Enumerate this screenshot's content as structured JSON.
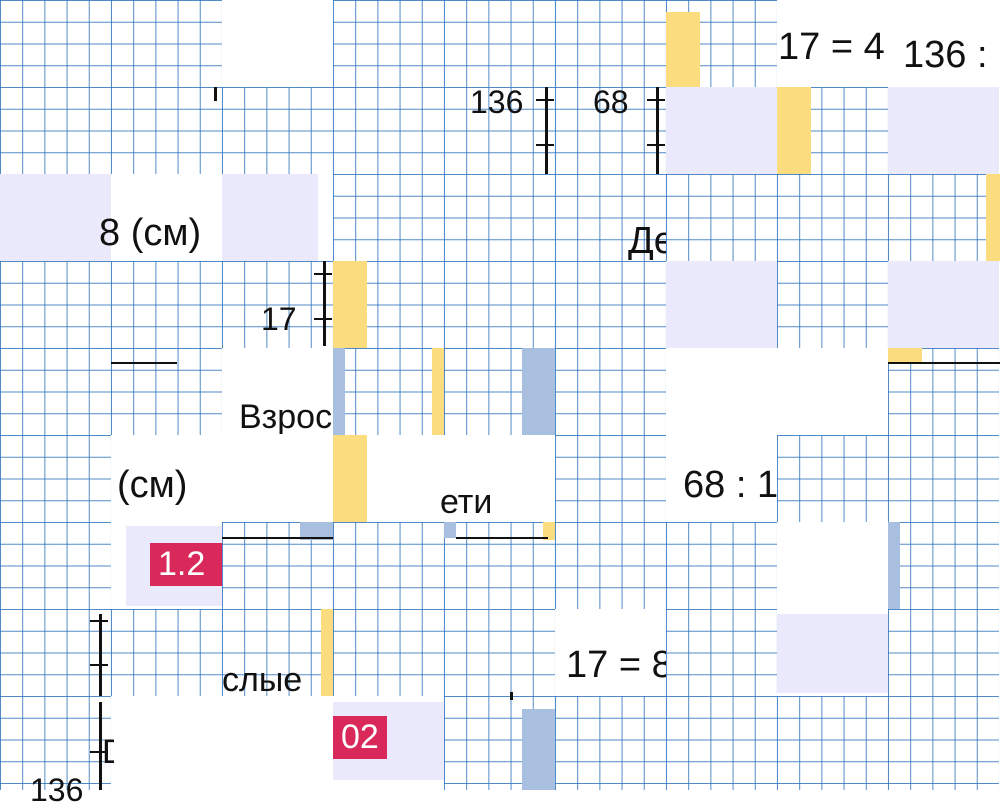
{
  "puzzle": {
    "texts": {
      "eq_17_4": "17 = 4",
      "div_136": "136 :",
      "tick_136": "136",
      "tick_68": "68",
      "eight_cm": "8 (см)",
      "de": "Де",
      "tick_17": "17",
      "vzros": "Взрос",
      "cm": "(см)",
      "deti": "ети",
      "div_68": "68 : 1",
      "eq_17": "17 = 8",
      "vzroslye": "слые",
      "ddd": "D",
      "bottom_136": "136"
    },
    "badges": {
      "b1": "1.2",
      "b2": "02"
    }
  }
}
